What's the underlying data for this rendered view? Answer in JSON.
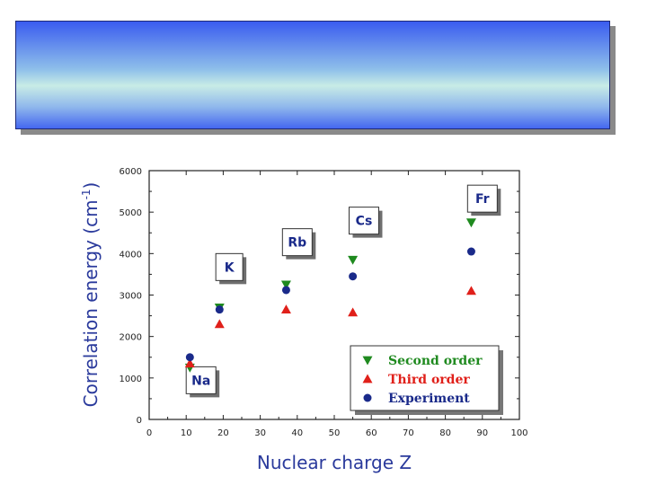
{
  "chart_data": {
    "type": "scatter",
    "title": "",
    "xlabel": "Nuclear charge Z",
    "ylabel": "Correlation energy (cm",
    "ylabel_sup": "-1",
    "ylabel_close": ")",
    "xlim": [
      0,
      100
    ],
    "ylim": [
      0,
      6000
    ],
    "xticks": [
      0,
      10,
      20,
      30,
      40,
      50,
      60,
      70,
      80,
      90,
      100
    ],
    "yticks": [
      0,
      1000,
      2000,
      3000,
      4000,
      5000,
      6000
    ],
    "series": [
      {
        "name": "Second order",
        "marker": "triangle-down",
        "color": "#1f8a1f",
        "x": [
          11,
          19,
          37,
          55,
          87
        ],
        "y": [
          1250,
          2700,
          3250,
          3850,
          4750
        ]
      },
      {
        "name": "Third order",
        "marker": "triangle-up",
        "color": "#e0201a",
        "x": [
          11,
          19,
          37,
          55,
          87
        ],
        "y": [
          1350,
          2300,
          2650,
          2580,
          3100
        ]
      },
      {
        "name": "Experiment",
        "marker": "circle",
        "color": "#1a2a8a",
        "x": [
          11,
          19,
          37,
          55,
          87
        ],
        "y": [
          1500,
          2650,
          3120,
          3450,
          4050
        ]
      }
    ],
    "annotations": [
      {
        "text": "Na",
        "x": 10,
        "y": 620
      },
      {
        "text": "K",
        "x": 18,
        "y": 3350
      },
      {
        "text": "Rb",
        "x": 36,
        "y": 3950
      },
      {
        "text": "Cs",
        "x": 54,
        "y": 4470
      },
      {
        "text": "Fr",
        "x": 86,
        "y": 5000
      }
    ],
    "legend_position": "bottom-right"
  }
}
